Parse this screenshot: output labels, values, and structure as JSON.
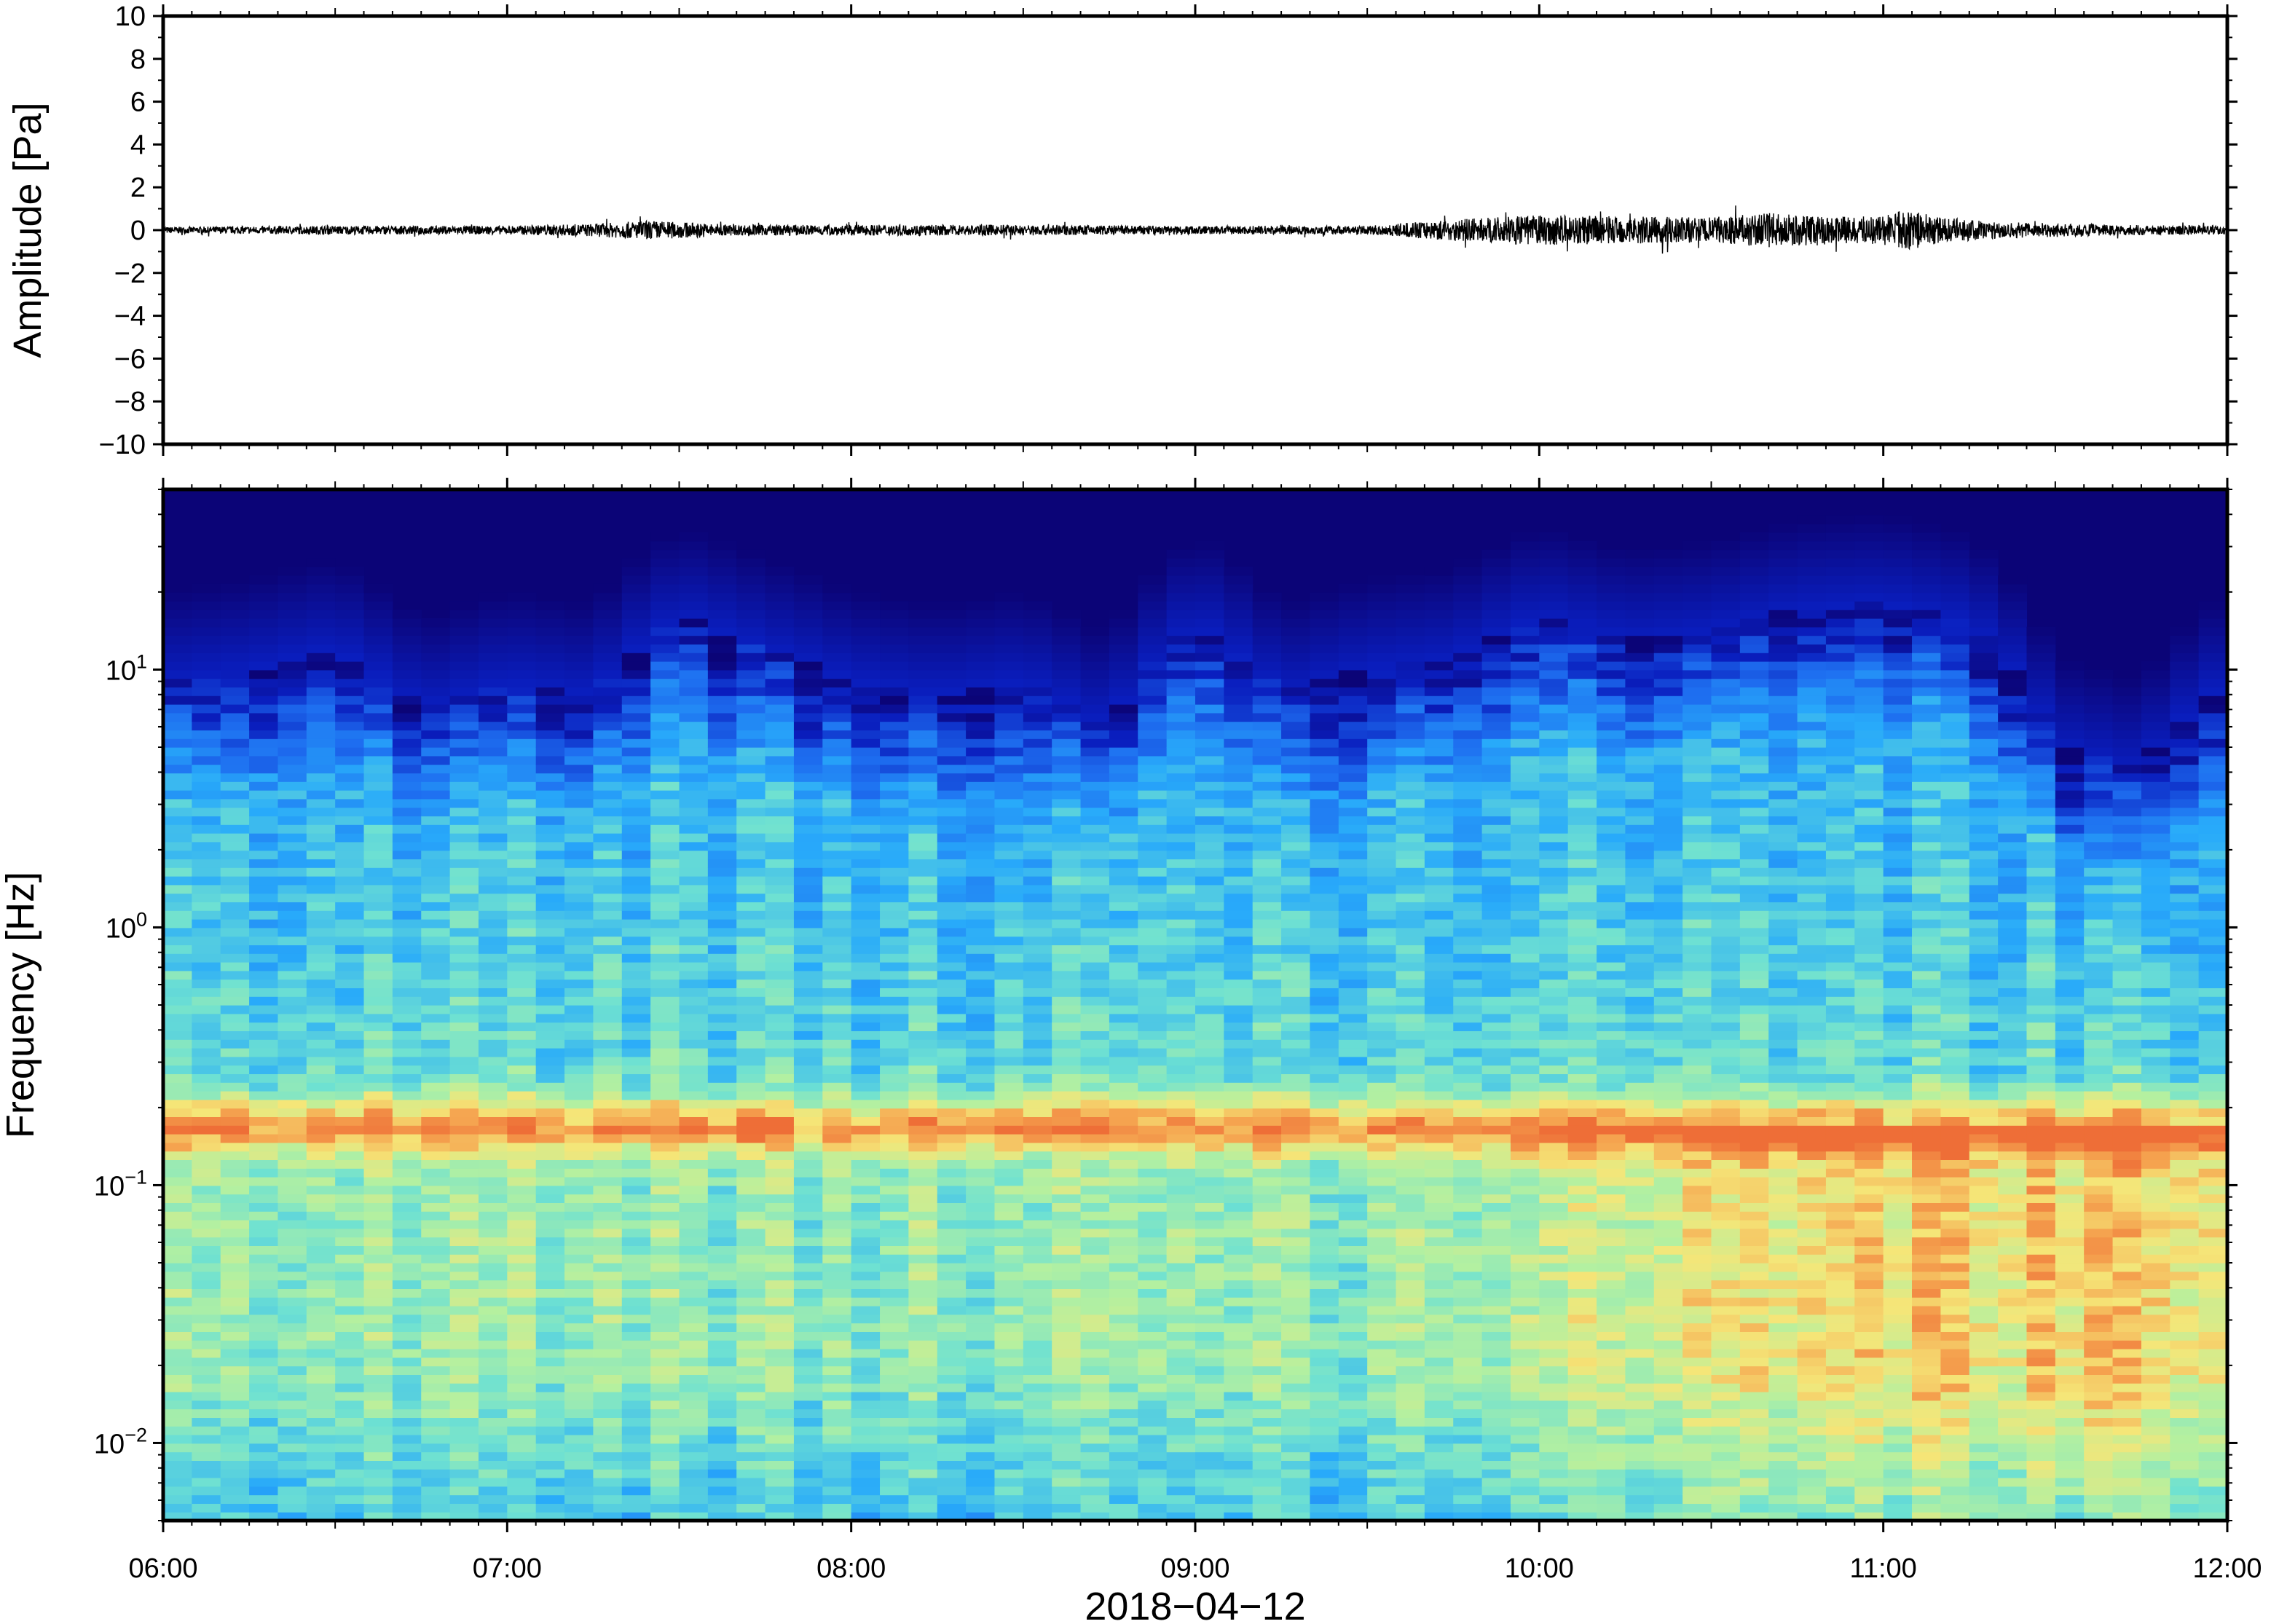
{
  "chart_data": [
    {
      "type": "line",
      "panel": "waveform",
      "ylabel": "Amplitude [Pa]",
      "ylim": [
        -10,
        10
      ],
      "yticks": [
        10,
        8,
        6,
        4,
        2,
        0,
        -2,
        -4,
        -6,
        -8,
        -10
      ],
      "ytick_labels": [
        "10",
        "8",
        "6",
        "4",
        "2",
        "0",
        "−2",
        "−4",
        "−6",
        "−8",
        "−10"
      ],
      "xlim": [
        "06:00",
        "12:00"
      ],
      "envelope": {
        "time": [
          "06:00",
          "06:30",
          "07:00",
          "07:15",
          "07:25",
          "07:40",
          "08:00",
          "08:30",
          "09:00",
          "09:30",
          "09:45",
          "10:00",
          "10:30",
          "10:40",
          "10:55",
          "11:05",
          "11:10",
          "11:20",
          "11:40",
          "12:00"
        ],
        "amplitude": [
          0.15,
          0.2,
          0.2,
          0.3,
          0.45,
          0.25,
          0.25,
          0.25,
          0.2,
          0.2,
          0.5,
          0.7,
          0.6,
          0.8,
          0.6,
          0.9,
          0.6,
          0.4,
          0.25,
          0.2
        ]
      },
      "line_color": "#000000"
    },
    {
      "type": "heatmap",
      "panel": "spectrogram",
      "ylabel": "Frequency [Hz]",
      "yscale": "log",
      "ylim": [
        0.005,
        50
      ],
      "yticks": [
        0.01,
        0.1,
        1,
        10
      ],
      "ytick_labels": [
        {
          "base": "10",
          "exp": "−2"
        },
        {
          "base": "10",
          "exp": "−1"
        },
        {
          "base": "10",
          "exp": "0"
        },
        {
          "base": "10",
          "exp": "1"
        }
      ],
      "xlabel": "2018−04−12",
      "xlim": [
        "06:00",
        "12:00"
      ],
      "xticks": [
        "06:00",
        "07:00",
        "08:00",
        "09:00",
        "10:00",
        "11:00",
        "12:00"
      ],
      "colormap": "jet",
      "colors": [
        "#0b0477",
        "#1f7fff",
        "#7feeb0",
        "#f7e36e",
        "#f4843a"
      ],
      "high_energy_band_hz": [
        0.15,
        0.2
      ],
      "upper_cutoff_hz": {
        "time": [
          "06:00",
          "06:15",
          "06:30",
          "06:45",
          "07:00",
          "07:15",
          "07:30",
          "07:45",
          "08:00",
          "08:15",
          "08:30",
          "08:45",
          "09:00",
          "09:15",
          "09:30",
          "09:45",
          "10:00",
          "10:15",
          "10:30",
          "10:45",
          "11:00",
          "11:15",
          "11:30",
          "11:45",
          "12:00"
        ],
        "freq": [
          9,
          10,
          12,
          7,
          9,
          8,
          16,
          12,
          9,
          8,
          9,
          6,
          15,
          8,
          10,
          11,
          16,
          13,
          14,
          17,
          18,
          15,
          5,
          4,
          9
        ]
      }
    }
  ]
}
